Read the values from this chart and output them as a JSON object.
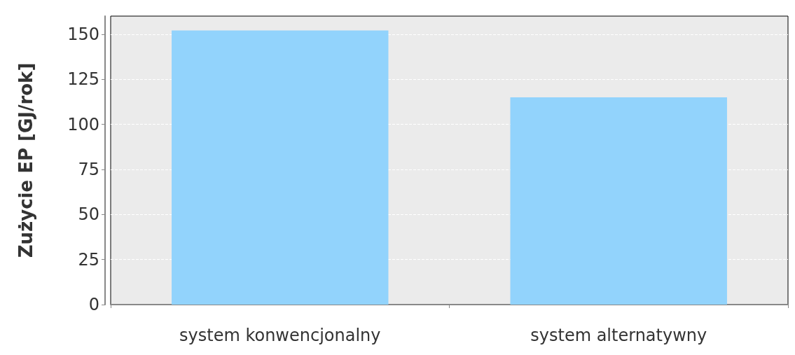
{
  "chart_data": {
    "type": "bar",
    "ylabel": "Zużycie EP [GJ/rok]",
    "categories": [
      "system konwencjonalny",
      "system alternatywny"
    ],
    "values": [
      152,
      115
    ],
    "color": "#92d3fc",
    "ylim": [
      0,
      160
    ],
    "yticks": [
      0,
      25,
      50,
      75,
      100,
      125,
      150
    ],
    "grid": "y"
  }
}
